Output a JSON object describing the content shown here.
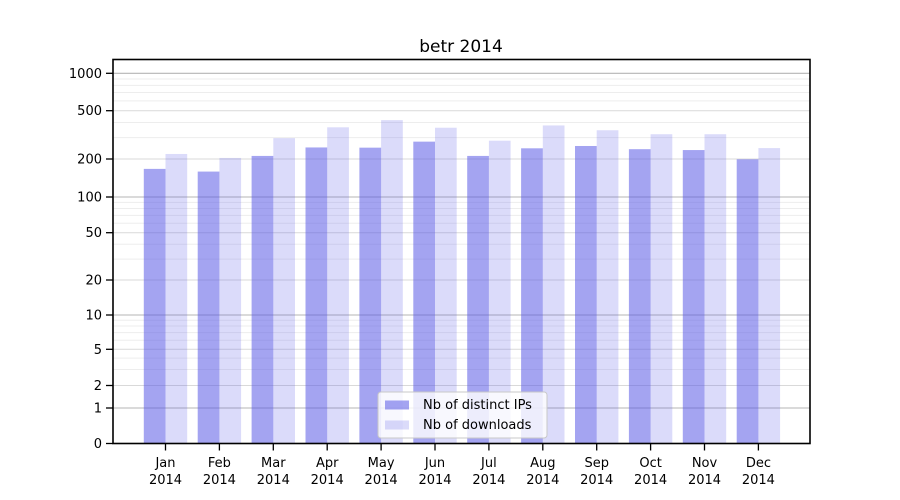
{
  "chart_data": {
    "type": "bar",
    "title": "betr 2014",
    "categories": [
      "Jan",
      "Feb",
      "Mar",
      "Apr",
      "May",
      "Jun",
      "Jul",
      "Aug",
      "Sep",
      "Oct",
      "Nov",
      "Dec"
    ],
    "x_tick_year": "2014",
    "series": [
      {
        "name": "Nb of distinct IPs",
        "values": [
          167,
          159,
          212,
          249,
          248,
          278,
          212,
          245,
          256,
          241,
          237,
          199
        ],
        "base_color": "#5a5ae6",
        "fill_opacity": 0.55,
        "visual_color": "#a7a7f1"
      },
      {
        "name": "Nb of downloads",
        "values": [
          220,
          204,
          297,
          365,
          418,
          362,
          283,
          378,
          345,
          320,
          320,
          246
        ],
        "base_color": "#5a5ae6",
        "fill_opacity": 0.22,
        "visual_color": "#dbdbf9"
      }
    ],
    "y_ticks": [
      0,
      1,
      2,
      5,
      10,
      20,
      50,
      100,
      200,
      500,
      1000
    ],
    "yscale": "asinh-log (log-like above 1, compressed linear near 0)",
    "ylim": [
      0,
      1300
    ],
    "xlabel": "",
    "ylabel": "",
    "grid": "on (major gray lines at decades, lighter at 2/5 steps, faint log minors)",
    "legend_position": "lower center inside plot"
  },
  "colors": {
    "background": "#ffffff",
    "axis": "#000000",
    "grid_major": "#b4b4b4",
    "grid_mid": "#d9d9d9",
    "grid_minor": "#ededed",
    "legend_background": "rgba(255,255,255,0.8)",
    "legend_border": "#c8c8c8"
  }
}
